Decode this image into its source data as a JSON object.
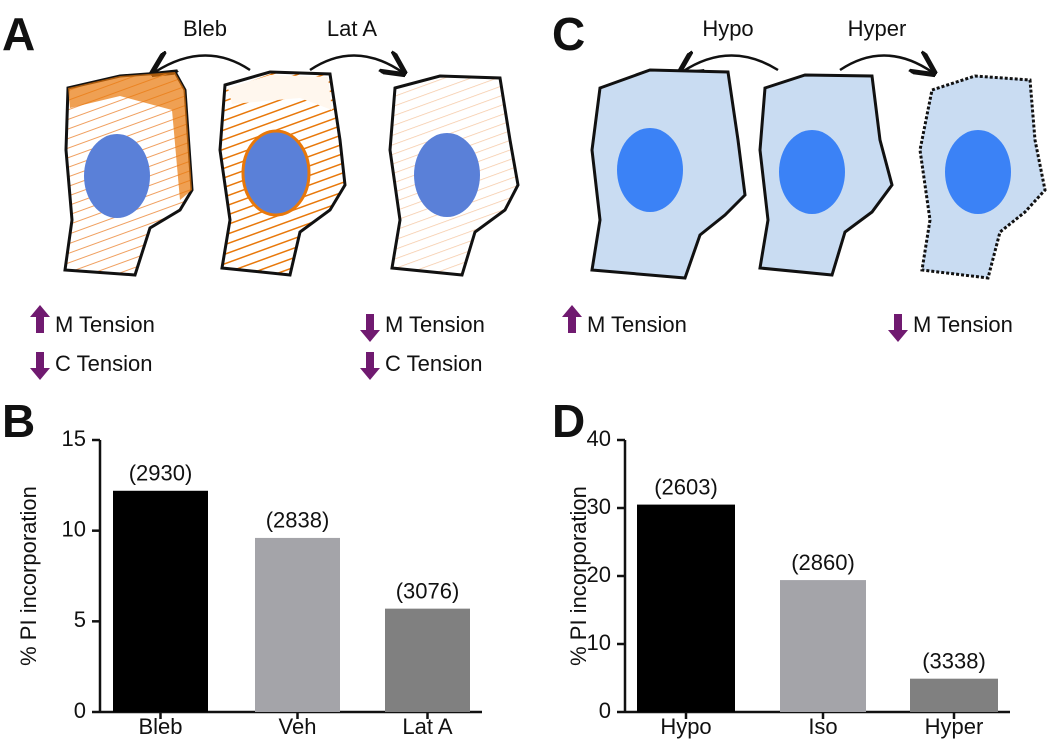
{
  "panel_a": {
    "letter": "A",
    "arrows": [
      "Bleb",
      "Lat A"
    ],
    "left_labels": [
      "M Tension",
      "C Tension"
    ],
    "right_labels": [
      "M Tension",
      "C Tension"
    ]
  },
  "panel_c": {
    "letter": "C",
    "arrows": [
      "Hypo",
      "Hyper"
    ],
    "left_labels": [
      "M Tension"
    ],
    "right_labels": [
      "M Tension"
    ]
  },
  "chart_data": [
    {
      "type": "bar",
      "panel": "B",
      "ylabel": "% PI incorporation",
      "categories": [
        "Bleb",
        "Veh",
        "Lat A"
      ],
      "values": [
        12.2,
        9.6,
        5.7
      ],
      "annotations": [
        "(2930)",
        "(2838)",
        "(3076)"
      ],
      "colors": [
        "#000000",
        "#a4a4a9",
        "#808080"
      ],
      "ylim": [
        0,
        15
      ],
      "yticks": [
        0,
        5,
        10,
        15
      ]
    },
    {
      "type": "bar",
      "panel": "D",
      "ylabel": "% PI incorporation",
      "categories": [
        "Hypo",
        "Iso",
        "Hyper"
      ],
      "values": [
        30.5,
        19.4,
        4.9
      ],
      "annotations": [
        "(2603)",
        "(2860)",
        "(3338)"
      ],
      "colors": [
        "#000000",
        "#a4a4a9",
        "#808080"
      ],
      "ylim": [
        0,
        40
      ],
      "yticks": [
        0,
        10,
        20,
        30,
        40
      ]
    }
  ]
}
